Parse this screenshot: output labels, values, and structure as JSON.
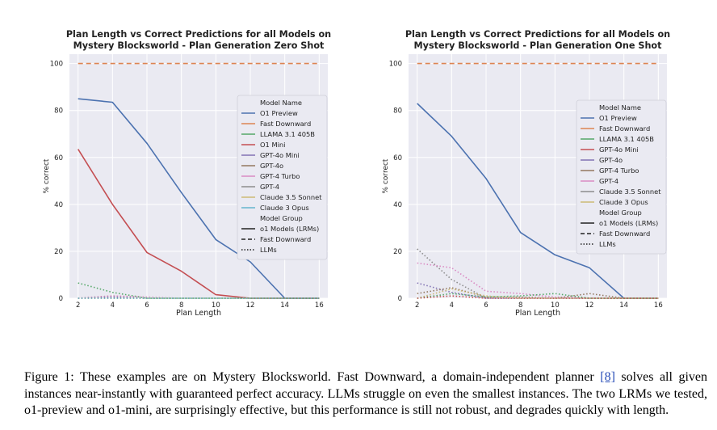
{
  "chart_data": [
    {
      "type": "line",
      "title": "Plan Length vs Correct Predictions for all Models on\nMystery Blocksworld - Plan Generation Zero Shot",
      "xlabel": "Plan Length",
      "ylabel": "% correct",
      "xlim": [
        1.5,
        16.5
      ],
      "ylim": [
        0,
        104
      ],
      "xticks": [
        2,
        4,
        6,
        8,
        10,
        12,
        14,
        16
      ],
      "yticks": [
        0,
        20,
        40,
        60,
        80,
        100
      ],
      "grid": true,
      "legend_position": "right",
      "legend_title_model": "Model Name",
      "legend_title_group": "Model Group",
      "models": [
        {
          "name": "O1 Preview",
          "color": "#4c72b0"
        },
        {
          "name": "Fast Downward",
          "color": "#dd8452"
        },
        {
          "name": "LLAMA 3.1 405B",
          "color": "#55a868"
        },
        {
          "name": "O1 Mini",
          "color": "#c44e52"
        },
        {
          "name": "GPT-4o Mini",
          "color": "#8172b3"
        },
        {
          "name": "GPT-4o",
          "color": "#937860"
        },
        {
          "name": "GPT-4 Turbo",
          "color": "#da8bc3"
        },
        {
          "name": "GPT-4",
          "color": "#8c8c8c"
        },
        {
          "name": "Claude 3.5 Sonnet",
          "color": "#ccb974"
        },
        {
          "name": "Claude 3 Opus",
          "color": "#64b5cd"
        }
      ],
      "groups": [
        {
          "name": "o1 Models (LRMs)",
          "dash": "solid"
        },
        {
          "name": "Fast Downward",
          "dash": "dashed"
        },
        {
          "name": "LLMs",
          "dash": "dotted"
        }
      ],
      "series": [
        {
          "name": "Fast Downward",
          "color": "#dd8452",
          "dash": "dashed",
          "x": [
            2,
            4,
            6,
            8,
            10,
            12,
            14,
            16
          ],
          "y": [
            100,
            100,
            100,
            100,
            100,
            100,
            100,
            100
          ]
        },
        {
          "name": "O1 Preview",
          "color": "#4c72b0",
          "dash": "solid",
          "x": [
            2,
            4,
            6,
            8,
            10,
            12,
            14,
            16
          ],
          "y": [
            85,
            83.5,
            66,
            45,
            25,
            15.5,
            0,
            0
          ]
        },
        {
          "name": "O1 Mini",
          "color": "#c44e52",
          "dash": "solid",
          "x": [
            2,
            4,
            6,
            8,
            10,
            12,
            14,
            16
          ],
          "y": [
            63.5,
            40,
            19.5,
            11.5,
            1.5,
            0,
            0,
            0
          ]
        },
        {
          "name": "LLAMA 3.1 405B",
          "color": "#55a868",
          "dash": "dotted",
          "x": [
            2,
            4,
            6,
            8,
            10,
            12,
            14,
            16
          ],
          "y": [
            6.5,
            2.5,
            0,
            0,
            0,
            0,
            0,
            0
          ]
        },
        {
          "name": "GPT-4o",
          "color": "#937860",
          "dash": "dotted",
          "x": [
            2,
            4,
            6,
            8,
            10,
            12,
            14,
            16
          ],
          "y": [
            0,
            1,
            0,
            0,
            0,
            0,
            0,
            0
          ]
        },
        {
          "name": "GPT-4 Turbo",
          "color": "#da8bc3",
          "dash": "dotted",
          "x": [
            2,
            4,
            6,
            8,
            10,
            12,
            14,
            16
          ],
          "y": [
            0,
            1,
            0.5,
            0,
            0,
            0,
            0,
            0
          ]
        },
        {
          "name": "GPT-4",
          "color": "#8c8c8c",
          "dash": "dotted",
          "x": [
            2,
            4,
            6,
            8,
            10,
            12,
            14,
            16
          ],
          "y": [
            0,
            0,
            0,
            0,
            0,
            0,
            0,
            0
          ]
        },
        {
          "name": "GPT-4o Mini",
          "color": "#8172b3",
          "dash": "dotted",
          "x": [
            2,
            4,
            6,
            8,
            10,
            12,
            14,
            16
          ],
          "y": [
            0,
            0.5,
            0,
            0,
            0,
            0,
            0,
            0
          ]
        },
        {
          "name": "Claude 3.5 Sonnet",
          "color": "#ccb974",
          "dash": "dotted",
          "x": [
            2,
            4,
            6,
            8,
            10,
            12,
            14,
            16
          ],
          "y": [
            0,
            0,
            0,
            0,
            0,
            0,
            0,
            0
          ]
        },
        {
          "name": "Claude 3 Opus",
          "color": "#64b5cd",
          "dash": "dotted",
          "x": [
            2,
            4,
            6,
            8,
            10,
            12,
            14,
            16
          ],
          "y": [
            0,
            0,
            0,
            0,
            0,
            0,
            0,
            0
          ]
        }
      ]
    },
    {
      "type": "line",
      "title": "Plan Length vs Correct Predictions for all Models on\nMystery Blocksworld - Plan Generation One Shot",
      "xlabel": "Plan Length",
      "ylabel": "% correct",
      "xlim": [
        1.5,
        16.5
      ],
      "ylim": [
        0,
        104
      ],
      "xticks": [
        2,
        4,
        6,
        8,
        10,
        12,
        14,
        16
      ],
      "yticks": [
        0,
        20,
        40,
        60,
        80,
        100
      ],
      "grid": true,
      "legend_position": "right",
      "legend_title_model": "Model Name",
      "legend_title_group": "Model Group",
      "models": [
        {
          "name": "O1 Preview",
          "color": "#4c72b0"
        },
        {
          "name": "Fast Downward",
          "color": "#dd8452"
        },
        {
          "name": "LLAMA 3.1 405B",
          "color": "#55a868"
        },
        {
          "name": "GPT-4o Mini",
          "color": "#c44e52"
        },
        {
          "name": "GPT-4o",
          "color": "#8172b3"
        },
        {
          "name": "GPT-4 Turbo",
          "color": "#937860"
        },
        {
          "name": "GPT-4",
          "color": "#da8bc3"
        },
        {
          "name": "Claude 3.5 Sonnet",
          "color": "#8c8c8c"
        },
        {
          "name": "Claude 3 Opus",
          "color": "#ccb974"
        }
      ],
      "groups": [
        {
          "name": "o1 Models (LRMs)",
          "dash": "solid"
        },
        {
          "name": "Fast Downward",
          "dash": "dashed"
        },
        {
          "name": "LLMs",
          "dash": "dotted"
        }
      ],
      "series": [
        {
          "name": "Fast Downward",
          "color": "#dd8452",
          "dash": "dashed",
          "x": [
            2,
            4,
            6,
            8,
            10,
            12,
            14,
            16
          ],
          "y": [
            100,
            100,
            100,
            100,
            100,
            100,
            100,
            100
          ]
        },
        {
          "name": "O1 Preview",
          "color": "#4c72b0",
          "dash": "solid",
          "x": [
            2,
            4,
            6,
            8,
            10,
            12,
            14,
            16
          ],
          "y": [
            83,
            69,
            51,
            28,
            18.5,
            13,
            0,
            0
          ]
        },
        {
          "name": "Claude 3.5 Sonnet",
          "color": "#8c8c8c",
          "dash": "dotted",
          "x": [
            2,
            4,
            6,
            8,
            10,
            12,
            14,
            16
          ],
          "y": [
            21,
            8,
            0,
            0,
            0,
            0,
            0,
            0
          ]
        },
        {
          "name": "GPT-4",
          "color": "#da8bc3",
          "dash": "dotted",
          "x": [
            2,
            4,
            6,
            8,
            10,
            12,
            14,
            16
          ],
          "y": [
            15,
            13,
            3,
            2,
            0.5,
            0,
            0,
            0
          ]
        },
        {
          "name": "GPT-4o",
          "color": "#8172b3",
          "dash": "dotted",
          "x": [
            2,
            4,
            6,
            8,
            10,
            12,
            14,
            16
          ],
          "y": [
            6.5,
            2.5,
            0,
            0,
            0,
            0,
            0,
            0
          ]
        },
        {
          "name": "GPT-4 Turbo",
          "color": "#937860",
          "dash": "dotted",
          "x": [
            2,
            4,
            6,
            8,
            10,
            12,
            14,
            16
          ],
          "y": [
            2,
            4.5,
            0.5,
            0.5,
            0,
            2,
            0,
            0
          ]
        },
        {
          "name": "Claude 3 Opus",
          "color": "#ccb974",
          "dash": "dotted",
          "x": [
            2,
            4,
            6,
            8,
            10,
            12,
            14,
            16
          ],
          "y": [
            0,
            4,
            1,
            0,
            0,
            0,
            0,
            0
          ]
        },
        {
          "name": "LLAMA 3.1 405B",
          "color": "#55a868",
          "dash": "dotted",
          "x": [
            2,
            4,
            6,
            8,
            10,
            12,
            14,
            16
          ],
          "y": [
            0,
            2,
            0.5,
            1,
            2,
            0,
            0,
            0
          ]
        },
        {
          "name": "GPT-4o Mini",
          "color": "#c44e52",
          "dash": "dotted",
          "x": [
            2,
            4,
            6,
            8,
            10,
            12,
            14,
            16
          ],
          "y": [
            0,
            1,
            0,
            0,
            0,
            0,
            0,
            0
          ]
        }
      ]
    }
  ],
  "caption": {
    "part1": "Figure 1: These examples are on Mystery Blocksworld. Fast Downward, a domain-independent planner ",
    "ref": "[8]",
    "part2": " solves all given instances near-instantly with guaranteed perfect accuracy. LLMs struggle on even the smallest instances. The two LRMs we tested, o1-preview and o1-mini, are surprisingly effective, but this performance is still not robust, and degrades quickly with length."
  }
}
